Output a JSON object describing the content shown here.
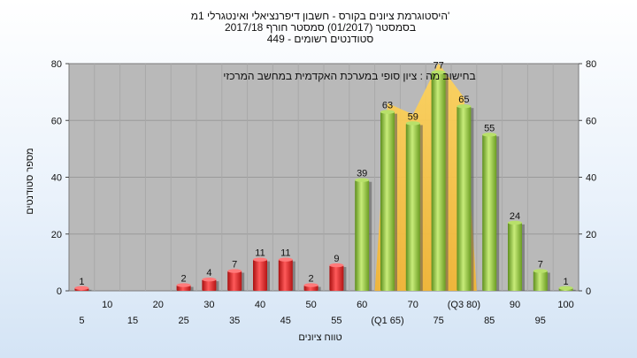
{
  "chart_data": {
    "type": "bar",
    "title_lines": [
      "היסטוגרמת ציונים בקורס - חשבון דיפרנציאלי ואינטגרלי 1מ'",
      "בסמסטר  (01/2017)  סמסטר חורף 2017/18",
      "449 - סטודנטים רשומים"
    ],
    "note": "בחישוב מה : ציון סופי במערכת האקדמית במחשב המרכזי",
    "xlabel": "טווח ציונים",
    "ylabel": "מספר סטודנטים",
    "ylim": [
      0,
      80
    ],
    "yticks": [
      0,
      20,
      40,
      60,
      80
    ],
    "grid": true,
    "legend": "none",
    "categories": [
      "5",
      "10",
      "15",
      "20",
      "25",
      "30",
      "35",
      "40",
      "45",
      "50",
      "55",
      "60",
      "65",
      "70",
      "75",
      "80",
      "85",
      "90",
      "95",
      "100"
    ],
    "category_labels": [
      "5",
      "10",
      "15",
      "20",
      "25",
      "30",
      "35",
      "40",
      "45",
      "50",
      "55",
      "60",
      "(Q1 65)",
      "70",
      "75",
      "(Q3 80)",
      "85",
      "90",
      "95",
      "100"
    ],
    "values": [
      1,
      0,
      0,
      0,
      2,
      4,
      7,
      11,
      11,
      2,
      9,
      39,
      63,
      59,
      77,
      65,
      55,
      24,
      7,
      1
    ],
    "pass_threshold": 55,
    "fail_color": "#d81e1e",
    "pass_color": "#8cc63f",
    "quartile_band": {
      "from": "65",
      "to": "80",
      "color": "#f7c34a"
    }
  }
}
